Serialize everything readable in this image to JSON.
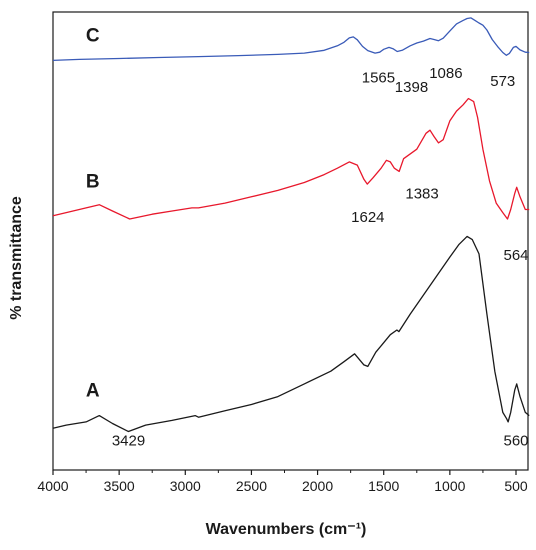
{
  "chart_data": {
    "type": "line",
    "title": "",
    "xlabel": "Wavenumbers (cm⁻¹)",
    "ylabel": "% transmittance",
    "xlim": [
      4000,
      400
    ],
    "x_reversed": true,
    "x_ticks": [
      4000,
      3500,
      3000,
      2500,
      2000,
      1500,
      1000,
      500
    ],
    "y_ticks_shown": false,
    "grid": false,
    "legend": "none",
    "series": [
      {
        "name": "A",
        "color": "#1a1a1a",
        "points": [
          [
            4000,
            10
          ],
          [
            3900,
            11
          ],
          [
            3750,
            12
          ],
          [
            3650,
            14
          ],
          [
            3550,
            11.5
          ],
          [
            3430,
            9
          ],
          [
            3300,
            11
          ],
          [
            3100,
            12.5
          ],
          [
            2925,
            14
          ],
          [
            2900,
            13.5
          ],
          [
            2700,
            15.5
          ],
          [
            2500,
            17.5
          ],
          [
            2300,
            20
          ],
          [
            2100,
            24
          ],
          [
            1900,
            28
          ],
          [
            1800,
            31
          ],
          [
            1720,
            33.5
          ],
          [
            1650,
            30
          ],
          [
            1620,
            29.5
          ],
          [
            1560,
            34
          ],
          [
            1500,
            37
          ],
          [
            1450,
            39.5
          ],
          [
            1400,
            41
          ],
          [
            1385,
            40.5
          ],
          [
            1300,
            46
          ],
          [
            1200,
            52
          ],
          [
            1100,
            58
          ],
          [
            1000,
            64
          ],
          [
            930,
            68
          ],
          [
            870,
            70.5
          ],
          [
            830,
            69.5
          ],
          [
            780,
            65
          ],
          [
            720,
            46
          ],
          [
            660,
            28
          ],
          [
            600,
            15
          ],
          [
            570,
            13
          ],
          [
            560,
            12
          ],
          [
            540,
            15
          ],
          [
            510,
            22
          ],
          [
            495,
            24
          ],
          [
            470,
            20
          ],
          [
            430,
            15
          ],
          [
            400,
            14
          ]
        ]
      },
      {
        "name": "B",
        "color": "#e8182c",
        "points": [
          [
            4000,
            77
          ],
          [
            3900,
            78
          ],
          [
            3750,
            79.5
          ],
          [
            3650,
            80.5
          ],
          [
            3550,
            78.5
          ],
          [
            3420,
            76
          ],
          [
            3250,
            77.5
          ],
          [
            3100,
            78.5
          ],
          [
            2950,
            79.5
          ],
          [
            2900,
            79.5
          ],
          [
            2700,
            81
          ],
          [
            2500,
            83
          ],
          [
            2300,
            85
          ],
          [
            2100,
            87.5
          ],
          [
            1950,
            90
          ],
          [
            1850,
            92
          ],
          [
            1760,
            94
          ],
          [
            1700,
            93
          ],
          [
            1650,
            88.5
          ],
          [
            1624,
            87
          ],
          [
            1580,
            89
          ],
          [
            1520,
            92
          ],
          [
            1480,
            94.5
          ],
          [
            1450,
            94
          ],
          [
            1420,
            92
          ],
          [
            1383,
            91
          ],
          [
            1350,
            95
          ],
          [
            1250,
            98
          ],
          [
            1180,
            103
          ],
          [
            1150,
            104
          ],
          [
            1120,
            102
          ],
          [
            1086,
            100
          ],
          [
            1050,
            101
          ],
          [
            1000,
            107
          ],
          [
            950,
            110
          ],
          [
            900,
            112
          ],
          [
            860,
            114
          ],
          [
            820,
            113
          ],
          [
            790,
            108
          ],
          [
            750,
            98
          ],
          [
            700,
            88
          ],
          [
            650,
            81
          ],
          [
            600,
            78
          ],
          [
            564,
            76
          ],
          [
            540,
            79
          ],
          [
            510,
            84
          ],
          [
            495,
            86
          ],
          [
            470,
            83
          ],
          [
            430,
            79
          ],
          [
            400,
            79
          ]
        ]
      },
      {
        "name": "C",
        "color": "#3a5bb8",
        "points": [
          [
            4000,
            126
          ],
          [
            3800,
            126.3
          ],
          [
            3500,
            126.6
          ],
          [
            3200,
            126.9
          ],
          [
            2900,
            127.2
          ],
          [
            2600,
            127.5
          ],
          [
            2300,
            127.9
          ],
          [
            2100,
            128.3
          ],
          [
            1950,
            129.2
          ],
          [
            1850,
            130.6
          ],
          [
            1800,
            131.7
          ],
          [
            1760,
            133.1
          ],
          [
            1730,
            133.4
          ],
          [
            1700,
            132.5
          ],
          [
            1660,
            130.4
          ],
          [
            1620,
            129.1
          ],
          [
            1565,
            128.3
          ],
          [
            1530,
            128.6
          ],
          [
            1500,
            129.5
          ],
          [
            1460,
            130.1
          ],
          [
            1430,
            129.7
          ],
          [
            1398,
            128.8
          ],
          [
            1360,
            129.2
          ],
          [
            1300,
            130.6
          ],
          [
            1250,
            131.5
          ],
          [
            1200,
            132.1
          ],
          [
            1150,
            132.9
          ],
          [
            1120,
            132.6
          ],
          [
            1086,
            132.2
          ],
          [
            1050,
            133
          ],
          [
            1000,
            135.3
          ],
          [
            950,
            137.5
          ],
          [
            900,
            138.6
          ],
          [
            870,
            139.2
          ],
          [
            840,
            139.4
          ],
          [
            810,
            138.6
          ],
          [
            780,
            137.8
          ],
          [
            750,
            137.1
          ],
          [
            720,
            135.6
          ],
          [
            680,
            132.6
          ],
          [
            640,
            130.4
          ],
          [
            600,
            128.5
          ],
          [
            573,
            127.6
          ],
          [
            550,
            128.2
          ],
          [
            520,
            130.1
          ],
          [
            500,
            130.4
          ],
          [
            470,
            129.3
          ],
          [
            430,
            128.6
          ],
          [
            400,
            128.5
          ]
        ]
      }
    ],
    "series_labels": [
      {
        "text": "A",
        "x": 3700,
        "y": 20
      },
      {
        "text": "B",
        "x": 3700,
        "y": 86
      },
      {
        "text": "C",
        "x": 3700,
        "y": 132
      }
    ],
    "annotations": [
      {
        "text": "3429",
        "x": 3429,
        "y": 4.5
      },
      {
        "text": "560",
        "x": 500,
        "y": 4.5
      },
      {
        "text": "564",
        "x": 500,
        "y": 63
      },
      {
        "text": "1624",
        "x": 1620,
        "y": 75
      },
      {
        "text": "1383",
        "x": 1210,
        "y": 82.5
      },
      {
        "text": "1565",
        "x": 1540,
        "y": 119
      },
      {
        "text": "1398",
        "x": 1290,
        "y": 116
      },
      {
        "text": "1086",
        "x": 1030,
        "y": 120.5
      },
      {
        "text": "573",
        "x": 600,
        "y": 118
      }
    ]
  }
}
